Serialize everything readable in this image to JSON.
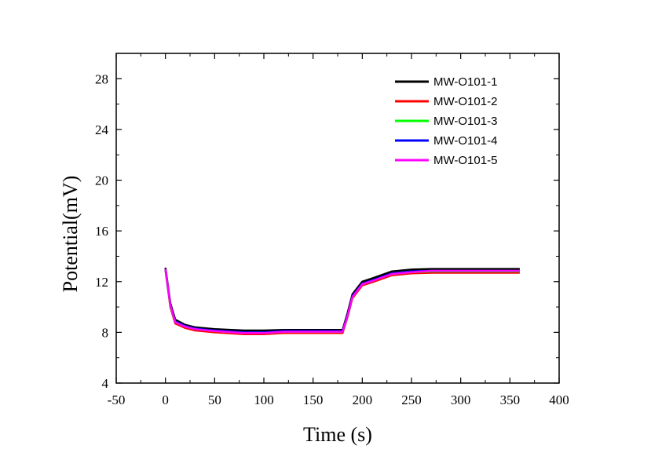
{
  "chart_data": {
    "type": "line",
    "xlabel": "Time (s)",
    "ylabel": "Potential(mV)",
    "xlim": [
      -50,
      400
    ],
    "ylim": [
      4,
      30
    ],
    "x_ticks": [
      -50,
      0,
      50,
      100,
      150,
      200,
      250,
      300,
      350,
      400
    ],
    "y_ticks": [
      4,
      8,
      12,
      16,
      20,
      24,
      28
    ],
    "grid": false,
    "legend_position": "top-right",
    "x": [
      0,
      5,
      10,
      20,
      30,
      50,
      80,
      100,
      120,
      150,
      180,
      185,
      190,
      200,
      210,
      230,
      250,
      270,
      300,
      330,
      360
    ],
    "series": [
      {
        "name": "MW-O101-1",
        "color": "#000000",
        "values": [
          13.1,
          10.3,
          9.0,
          8.6,
          8.4,
          8.25,
          8.15,
          8.15,
          8.2,
          8.2,
          8.2,
          9.5,
          11.0,
          12.0,
          12.25,
          12.8,
          12.95,
          13.0,
          13.0,
          13.0,
          13.0
        ]
      },
      {
        "name": "MW-O101-2",
        "color": "#ff0000",
        "values": [
          12.9,
          10.0,
          8.7,
          8.35,
          8.15,
          8.0,
          7.85,
          7.85,
          7.95,
          7.95,
          7.95,
          9.2,
          10.7,
          11.7,
          11.95,
          12.5,
          12.65,
          12.7,
          12.7,
          12.7,
          12.7
        ]
      },
      {
        "name": "MW-O101-3",
        "color": "#00ff00",
        "values": [
          13.0,
          10.1,
          8.8,
          8.45,
          8.25,
          8.1,
          7.95,
          7.95,
          8.05,
          8.05,
          8.05,
          9.3,
          10.8,
          11.8,
          12.05,
          12.6,
          12.75,
          12.8,
          12.8,
          12.8,
          12.8
        ]
      },
      {
        "name": "MW-O101-4",
        "color": "#0000ff",
        "values": [
          13.0,
          10.2,
          8.85,
          8.5,
          8.3,
          8.15,
          8.0,
          8.0,
          8.1,
          8.1,
          8.1,
          9.35,
          10.85,
          11.85,
          12.1,
          12.65,
          12.8,
          12.85,
          12.85,
          12.85,
          12.85
        ]
      },
      {
        "name": "MW-O101-5",
        "color": "#ff00ff",
        "values": [
          13.0,
          10.15,
          8.8,
          8.45,
          8.25,
          8.1,
          7.95,
          7.95,
          8.05,
          8.05,
          8.05,
          9.3,
          10.8,
          11.8,
          12.05,
          12.6,
          12.75,
          12.85,
          12.85,
          12.85,
          12.85
        ]
      }
    ]
  }
}
